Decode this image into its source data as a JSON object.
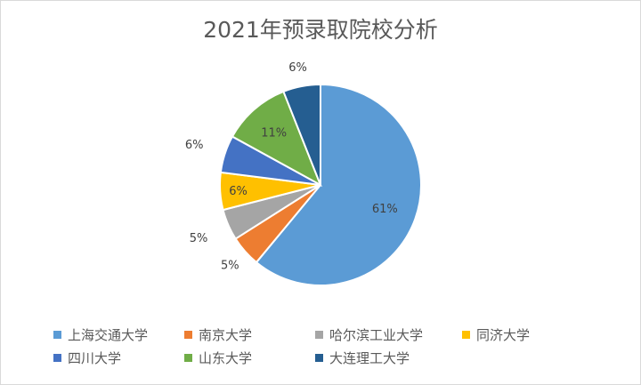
{
  "chart_data": {
    "type": "pie",
    "title": "2021年预录取院校分析",
    "categories": [
      "上海交通大学",
      "南京大学",
      "哈尔滨工业大学",
      "同济大学",
      "四川大学",
      "山东大学",
      "大连理工大学"
    ],
    "values": [
      61,
      5,
      5,
      6,
      6,
      11,
      6
    ],
    "labels": [
      "61%",
      "5%",
      "5%",
      "6%",
      "6%",
      "11%",
      "6%"
    ],
    "colors": [
      "#5B9BD5",
      "#ED7D31",
      "#A5A5A5",
      "#FFC000",
      "#4472C4",
      "#70AD47",
      "#255E91"
    ],
    "legend_position": "bottom",
    "start_angle_deg": 0,
    "direction": "clockwise"
  }
}
